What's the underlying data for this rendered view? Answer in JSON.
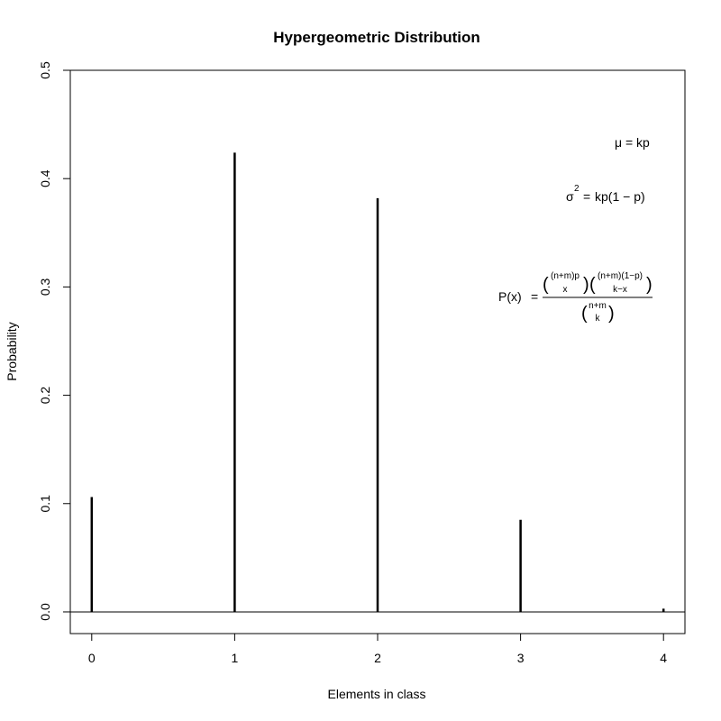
{
  "chart_data": {
    "type": "bar",
    "title": "Hypergeometric Distribution",
    "xlabel": "Elements in class",
    "ylabel": "Probability",
    "x": [
      0,
      1,
      2,
      3,
      4
    ],
    "values": [
      0.106,
      0.424,
      0.382,
      0.085,
      0.003
    ],
    "xlim": [
      -0.15,
      4.15
    ],
    "ylim": [
      -0.02,
      0.5
    ],
    "x_ticks": [
      "0",
      "1",
      "2",
      "3",
      "4"
    ],
    "y_ticks": [
      "0.0",
      "0.1",
      "0.2",
      "0.3",
      "0.4",
      "0.5"
    ],
    "y_tick_values": [
      0,
      0.1,
      0.2,
      0.3,
      0.4,
      0.5
    ],
    "grid": false,
    "style": "histogram spikes with horizontal baseline at 0",
    "annotations": {
      "mean": {
        "lhs": "μ",
        "eq": "=",
        "rhs": "kp"
      },
      "variance": {
        "lhs": "σ",
        "exp": "2",
        "eq": "=",
        "rhs": "kp(1 − p)"
      },
      "pmf": {
        "lhs": "P(x)",
        "eq": "=",
        "num1_top": "(n+m)p",
        "num1_bottom": "x",
        "num2_top": "(n+m)(1−p)",
        "num2_bottom": "k−x",
        "den_top": "n+m",
        "den_bottom": "k"
      }
    }
  }
}
